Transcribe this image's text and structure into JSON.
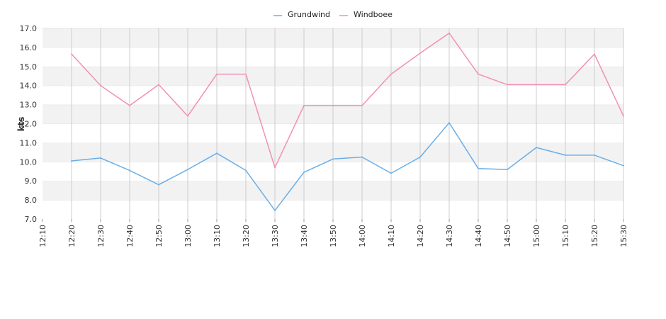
{
  "chart_data": {
    "type": "line",
    "title": "",
    "xlabel": "",
    "ylabel": "kts",
    "ylim": [
      7.0,
      17.0
    ],
    "y_ticks": [
      "7.0",
      "8.0",
      "9.0",
      "10.0",
      "11.0",
      "12.0",
      "13.0",
      "14.0",
      "15.0",
      "16.0",
      "17.0"
    ],
    "x": [
      "12:10",
      "12:20",
      "12:30",
      "12:40",
      "12:50",
      "13:00",
      "13:10",
      "13:20",
      "13:30",
      "13:40",
      "13:50",
      "14:00",
      "14:10",
      "14:20",
      "14:30",
      "14:40",
      "14:50",
      "15:00",
      "15:10",
      "15:20",
      "15:30"
    ],
    "grid": true,
    "alternating_bands": true,
    "legend_position": "top-center",
    "series": [
      {
        "name": "Grundwind",
        "color": "#6aaee8",
        "values": [
          null,
          10.05,
          10.2,
          9.55,
          8.8,
          9.6,
          10.45,
          9.55,
          7.45,
          9.45,
          10.15,
          10.25,
          9.4,
          10.25,
          12.05,
          9.65,
          9.6,
          10.75,
          10.35,
          10.35,
          9.8
        ]
      },
      {
        "name": "Windboee",
        "color": "#f28fb7",
        "values": [
          null,
          15.65,
          14.0,
          12.95,
          14.05,
          12.4,
          14.6,
          14.6,
          9.7,
          12.95,
          12.95,
          12.95,
          14.6,
          15.7,
          16.75,
          14.6,
          14.05,
          14.05,
          14.05,
          15.65,
          12.4
        ]
      }
    ]
  }
}
